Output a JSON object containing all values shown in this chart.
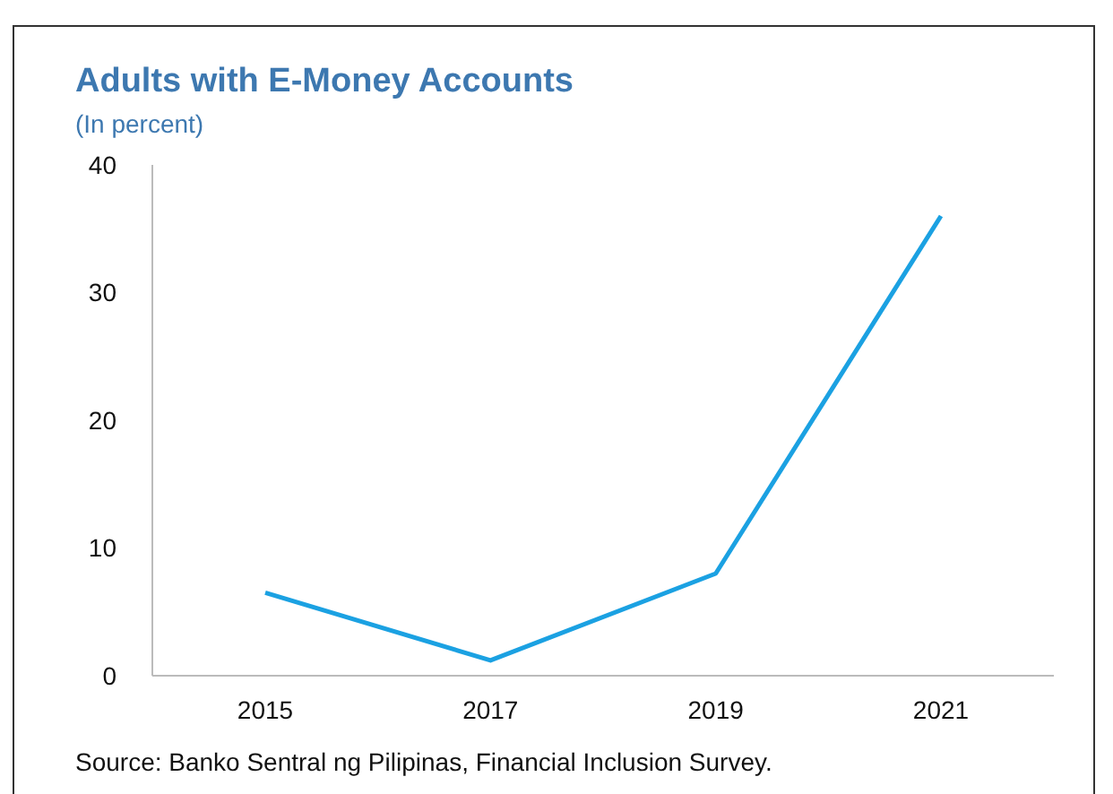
{
  "chart_data": {
    "type": "line",
    "title": "Adults with E-Money Accounts",
    "subtitle": "(In percent)",
    "categories": [
      "2015",
      "2017",
      "2019",
      "2021"
    ],
    "series": [
      {
        "color": "#1ba1e2",
        "values": [
          6.5,
          1.2,
          8,
          36
        ]
      }
    ],
    "ylim": [
      0,
      40
    ],
    "yticks": [
      0,
      10,
      20,
      30,
      40
    ],
    "grid": false,
    "legend": false,
    "marker": "none",
    "annotations": [
      "Source: Banko Sentral ng Pilipinas, Financial Inclusion Survey."
    ]
  }
}
